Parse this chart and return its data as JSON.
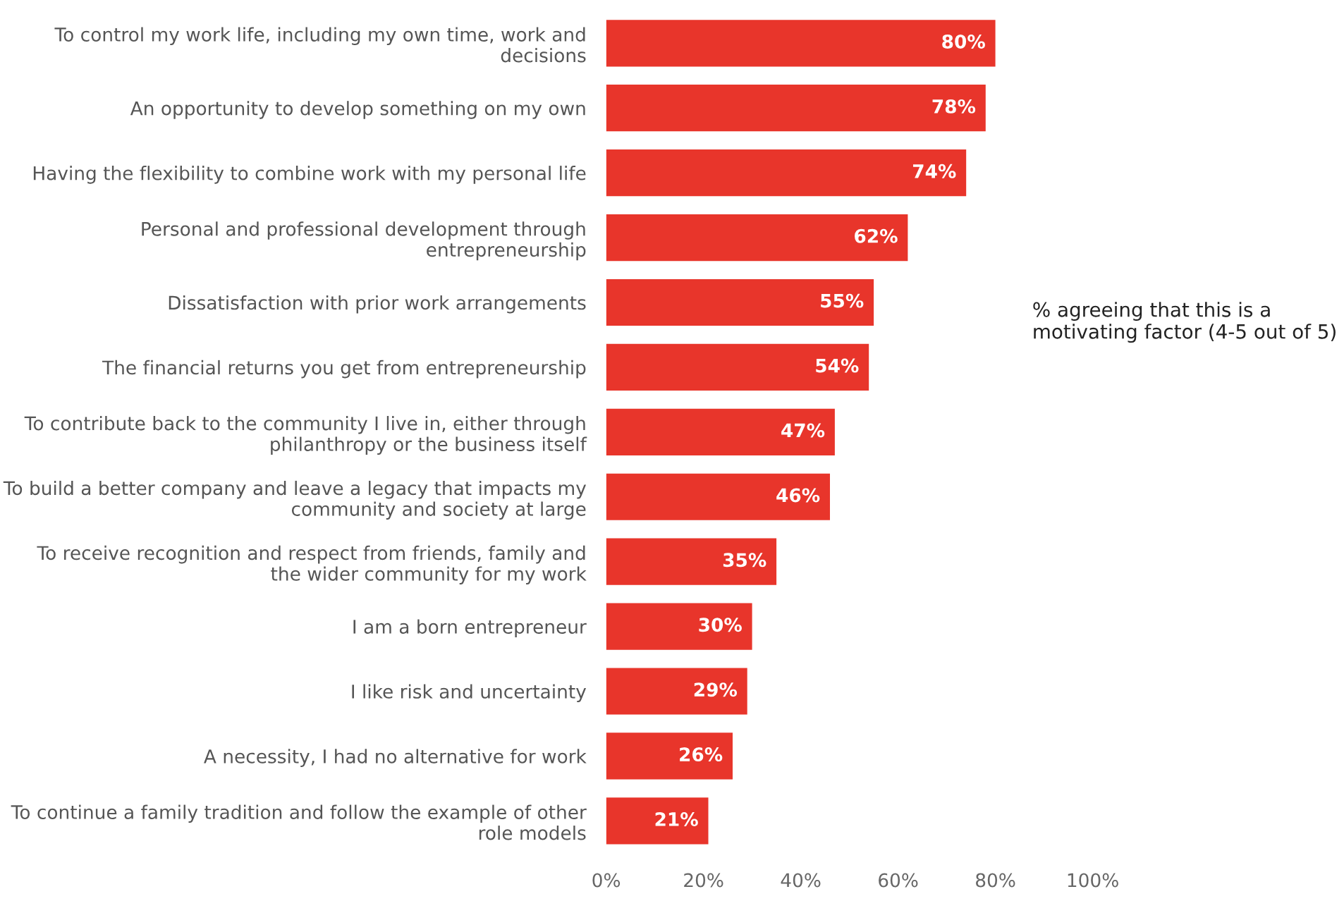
{
  "chart_data": {
    "type": "bar",
    "orientation": "horizontal",
    "categories": [
      "To control my work life, including my own time, work and decisions",
      "An opportunity to develop something on my own",
      "Having the flexibility to combine work with my personal life",
      "Personal and professional development through entrepreneurship",
      "Dissatisfaction with prior work arrangements",
      "The financial returns you get from entrepreneurship",
      "To contribute back to the community I live in, either through philanthropy or the business itself",
      "To build a better company and leave a legacy that impacts my community and society at large",
      "To receive recognition and respect from friends, family and the wider community for my work",
      "I am a born entrepreneur",
      "I like risk and uncertainty",
      "A necessity, I had no alternative for work",
      "To continue a family tradition and follow the example of other role models"
    ],
    "values": [
      80,
      78,
      74,
      62,
      55,
      54,
      47,
      46,
      35,
      30,
      29,
      26,
      21
    ],
    "value_labels": [
      "80%",
      "78%",
      "74%",
      "62%",
      "55%",
      "54%",
      "47%",
      "46%",
      "35%",
      "30%",
      "29%",
      "26%",
      "21%"
    ],
    "color": "#e8352b",
    "xlim": [
      0,
      100
    ],
    "xticks": [
      {
        "value": 0,
        "label": "0%"
      },
      {
        "value": 20,
        "label": "20%"
      },
      {
        "value": 40,
        "label": "40%"
      },
      {
        "value": 60,
        "label": "60%"
      },
      {
        "value": 80,
        "label": "80%"
      },
      {
        "value": 100,
        "label": "100%"
      }
    ],
    "grid": false,
    "legend": false,
    "annotations": [
      "% agreeing that this is a motivating factor (4-5 out of 5)"
    ]
  }
}
